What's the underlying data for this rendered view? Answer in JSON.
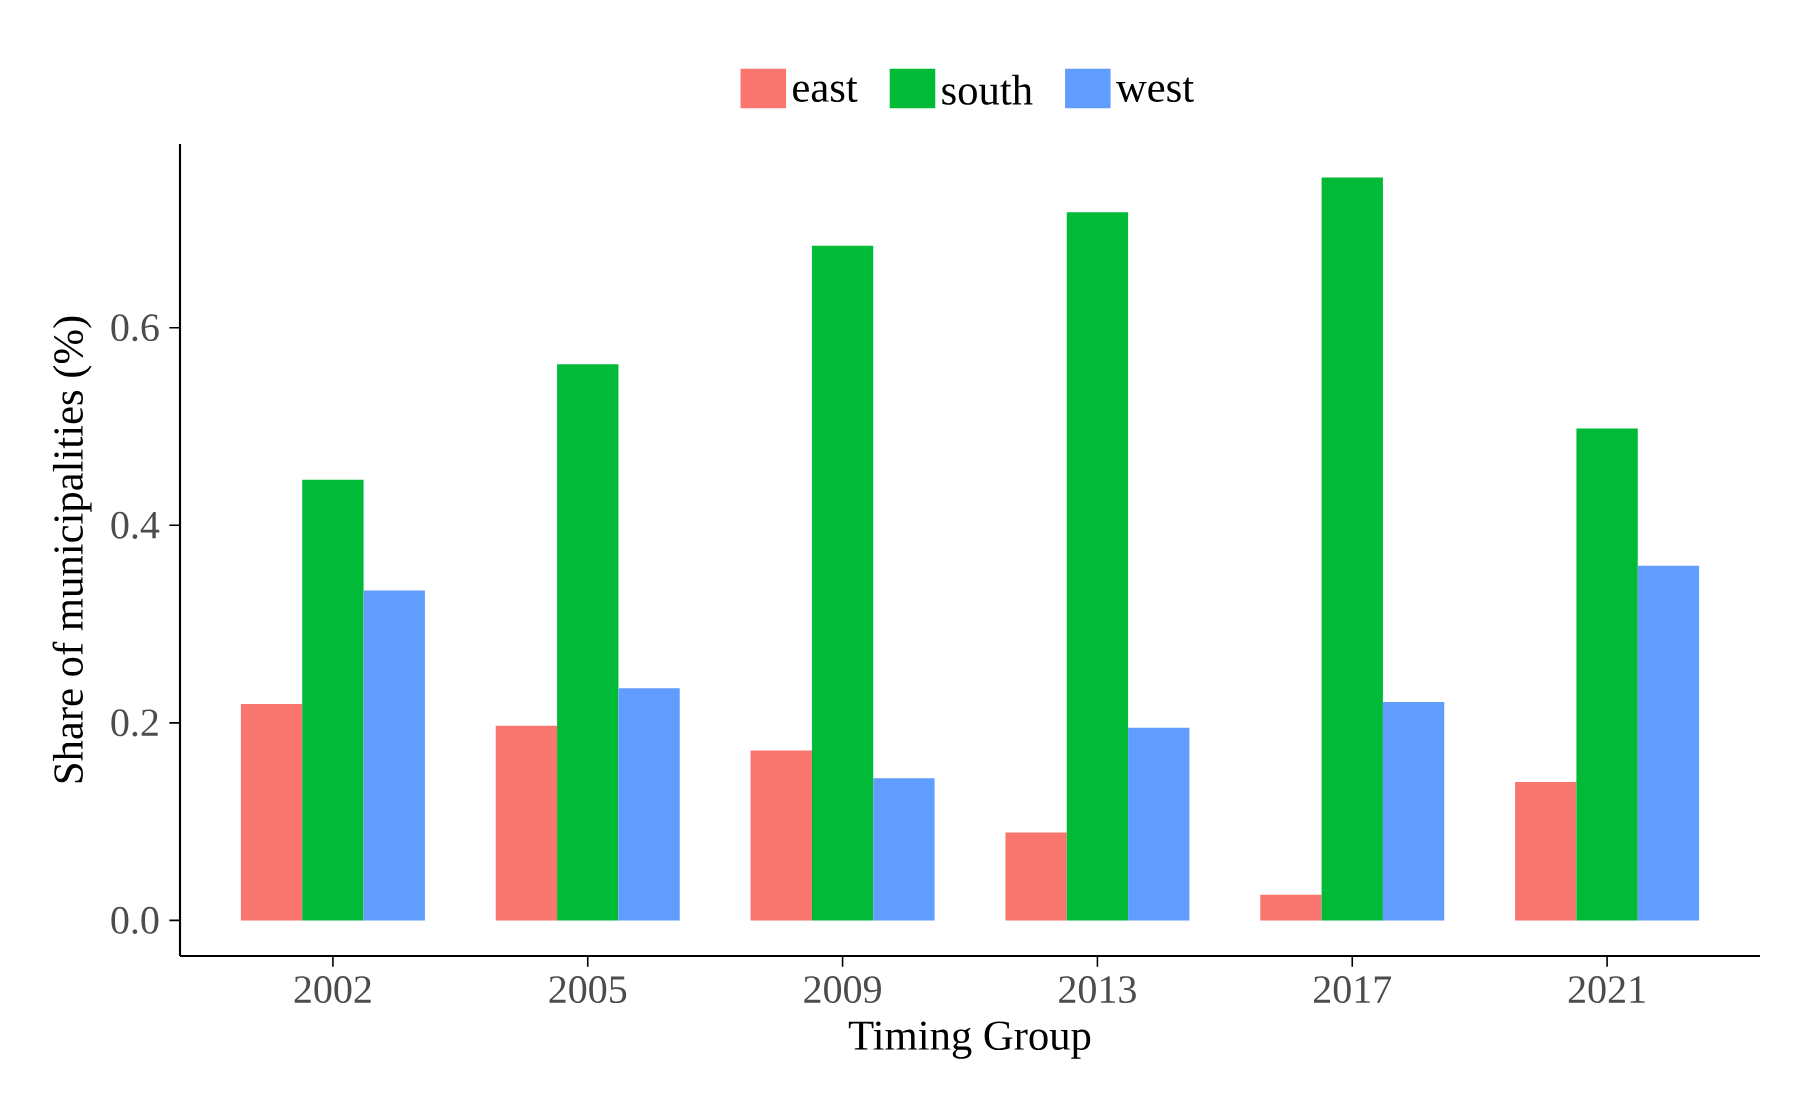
{
  "chart_data": {
    "type": "bar",
    "xlabel": "Timing Group",
    "ylabel": "Share of municipalities (%)",
    "categories": [
      "2002",
      "2005",
      "2009",
      "2013",
      "2017",
      "2021"
    ],
    "series": [
      {
        "name": "east",
        "color": "#f8766d",
        "values": [
          0.219,
          0.197,
          0.172,
          0.089,
          0.026,
          0.14
        ]
      },
      {
        "name": "south",
        "color": "#00ba38",
        "values": [
          0.446,
          0.563,
          0.683,
          0.717,
          0.752,
          0.498
        ]
      },
      {
        "name": "west",
        "color": "#619cff",
        "values": [
          0.334,
          0.235,
          0.144,
          0.195,
          0.221,
          0.359
        ]
      }
    ],
    "ylim": [
      -0.036,
      0.786
    ],
    "yticks": [
      {
        "value": 0,
        "label": "0.0"
      },
      {
        "value": 0.2,
        "label": "0.2"
      },
      {
        "value": 0.4,
        "label": "0.4"
      },
      {
        "value": 0.6,
        "label": "0.6"
      }
    ],
    "grid": false,
    "legend": "top"
  }
}
